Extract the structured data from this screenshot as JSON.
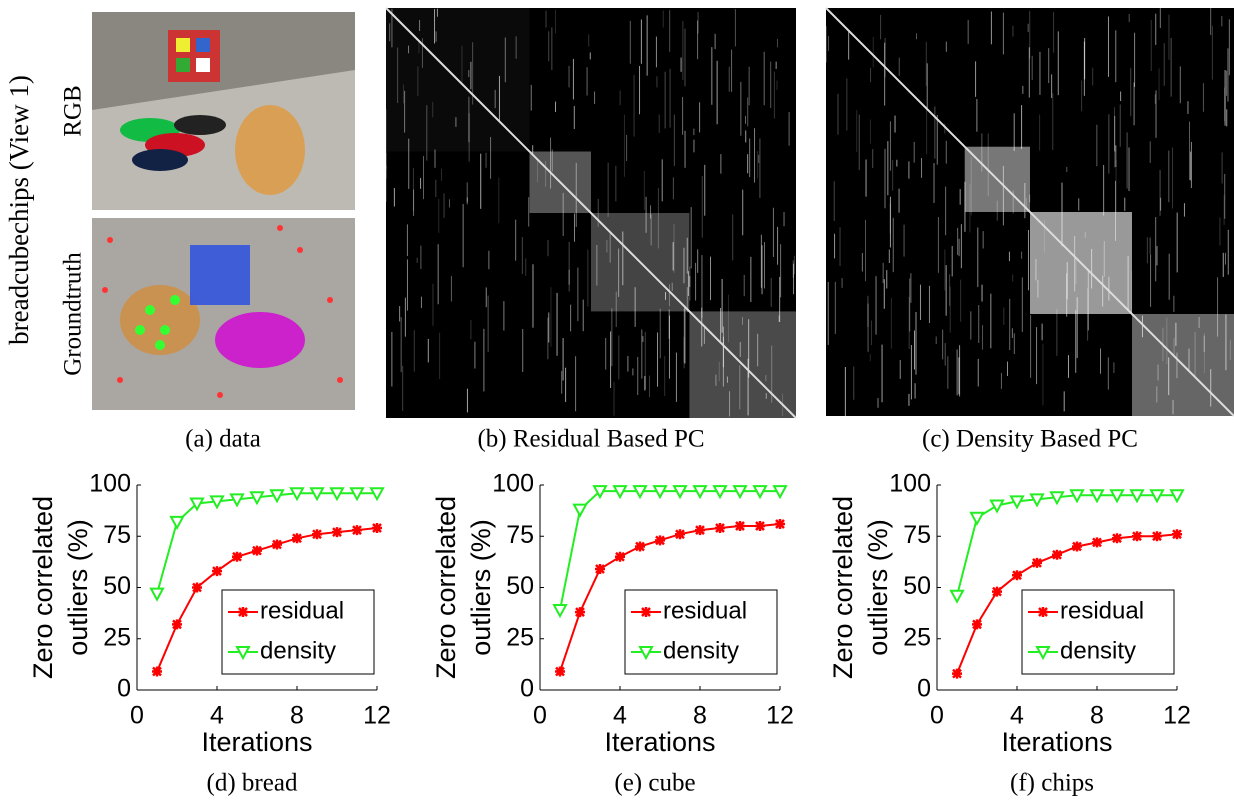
{
  "figure": {
    "side_label": "breadcubechips (View 1)",
    "rgb_label": "RGB",
    "gt_label": "Groundtruth",
    "captions": [
      "(a) data",
      "(b) Residual Based PC",
      "(c) Density Based PC"
    ]
  },
  "chart_data": [
    {
      "type": "line",
      "caption": "(d) bread",
      "xlabel": "Iterations",
      "ylabel": [
        "Zero correlated",
        "outliers (%)"
      ],
      "x": [
        1,
        2,
        3,
        4,
        5,
        6,
        7,
        8,
        9,
        10,
        11,
        12
      ],
      "xlim": [
        0,
        12
      ],
      "xticks": [
        0,
        4,
        8,
        12
      ],
      "ylim": [
        0,
        100
      ],
      "yticks": [
        0,
        25,
        50,
        75,
        100
      ],
      "legend": "lower right",
      "series": [
        {
          "name": "residual",
          "color": "#ff0000",
          "marker": "asterisk",
          "values": [
            9,
            32,
            50,
            58,
            65,
            68,
            71,
            74,
            76,
            77,
            78,
            79
          ]
        },
        {
          "name": "density",
          "color": "#22ee22",
          "marker": "triangle-down",
          "values": [
            47,
            82,
            91,
            92,
            93,
            94,
            95,
            96,
            96,
            96,
            96,
            96
          ]
        }
      ]
    },
    {
      "type": "line",
      "caption": "(e) cube",
      "xlabel": "Iterations",
      "ylabel": [
        "Zero correlated",
        "outliers (%)"
      ],
      "x": [
        1,
        2,
        3,
        4,
        5,
        6,
        7,
        8,
        9,
        10,
        11,
        12
      ],
      "xlim": [
        0,
        12
      ],
      "xticks": [
        0,
        4,
        8,
        12
      ],
      "ylim": [
        0,
        100
      ],
      "yticks": [
        0,
        25,
        50,
        75,
        100
      ],
      "legend": "lower right",
      "series": [
        {
          "name": "residual",
          "color": "#ff0000",
          "marker": "asterisk",
          "values": [
            9,
            38,
            59,
            65,
            70,
            73,
            76,
            78,
            79,
            80,
            80,
            81
          ]
        },
        {
          "name": "density",
          "color": "#22ee22",
          "marker": "triangle-down",
          "values": [
            39,
            88,
            97,
            97,
            97,
            97,
            97,
            97,
            97,
            97,
            97,
            97
          ]
        }
      ]
    },
    {
      "type": "line",
      "caption": "(f) chips",
      "xlabel": "Iterations",
      "ylabel": [
        "Zero correlated",
        "outliers (%)"
      ],
      "x": [
        1,
        2,
        3,
        4,
        5,
        6,
        7,
        8,
        9,
        10,
        11,
        12
      ],
      "xlim": [
        0,
        12
      ],
      "xticks": [
        0,
        4,
        8,
        12
      ],
      "ylim": [
        0,
        100
      ],
      "yticks": [
        0,
        25,
        50,
        75,
        100
      ],
      "legend": "lower right",
      "series": [
        {
          "name": "residual",
          "color": "#ff0000",
          "marker": "asterisk",
          "values": [
            8,
            32,
            48,
            56,
            62,
            66,
            70,
            72,
            74,
            75,
            75,
            76
          ]
        },
        {
          "name": "density",
          "color": "#22ee22",
          "marker": "triangle-down",
          "values": [
            46,
            84,
            90,
            92,
            93,
            94,
            95,
            95,
            95,
            95,
            95,
            95
          ]
        }
      ]
    }
  ]
}
